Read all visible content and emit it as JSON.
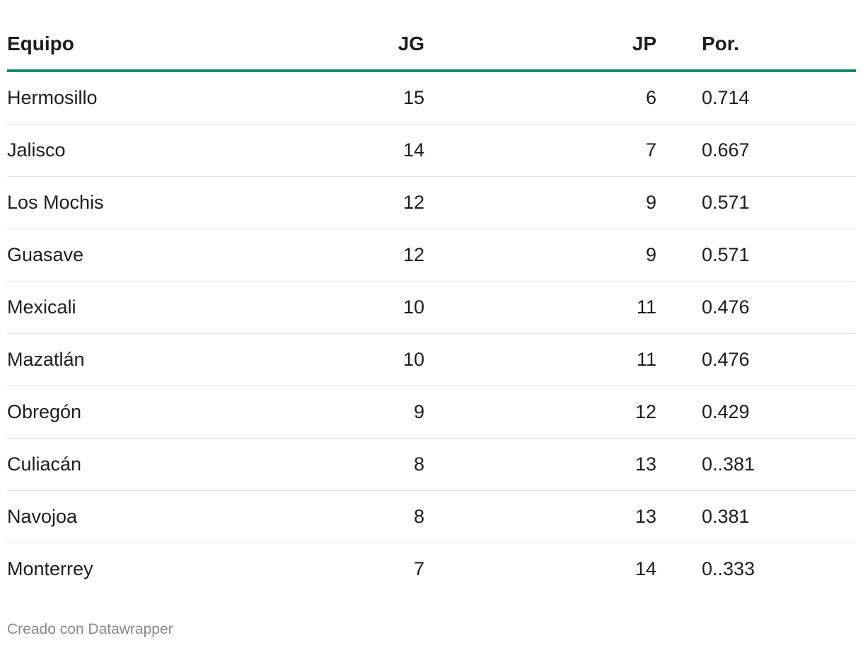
{
  "chart_data": {
    "type": "table",
    "columns": [
      "Equipo",
      "JG",
      "JP",
      "Por."
    ],
    "rows": [
      {
        "team": "Hermosillo",
        "jg": "15",
        "jp": "6",
        "por": "0.714"
      },
      {
        "team": "Jalisco",
        "jg": "14",
        "jp": "7",
        "por": "0.667"
      },
      {
        "team": "Los Mochis",
        "jg": "12",
        "jp": "9",
        "por": "0.571"
      },
      {
        "team": "Guasave",
        "jg": "12",
        "jp": "9",
        "por": "0.571"
      },
      {
        "team": "Mexicali",
        "jg": "10",
        "jp": "11",
        "por": "0.476"
      },
      {
        "team": "Mazatlán",
        "jg": "10",
        "jp": "11",
        "por": "0.476"
      },
      {
        "team": "Obregón",
        "jg": "9",
        "jp": "12",
        "por": "0.429"
      },
      {
        "team": "Culiacán",
        "jg": "8",
        "jp": "13",
        "por": "0..381"
      },
      {
        "team": "Navojoa",
        "jg": "8",
        "jp": "13",
        "por": "0.381"
      },
      {
        "team": "Monterrey",
        "jg": "7",
        "jp": "14",
        "por": "0..333"
      }
    ]
  },
  "footer": {
    "credit": "Creado con Datawrapper"
  },
  "colors": {
    "header_rule": "#1a8a74",
    "row_divider": "#e3e3e3",
    "footer_text": "#8a8a8a"
  }
}
